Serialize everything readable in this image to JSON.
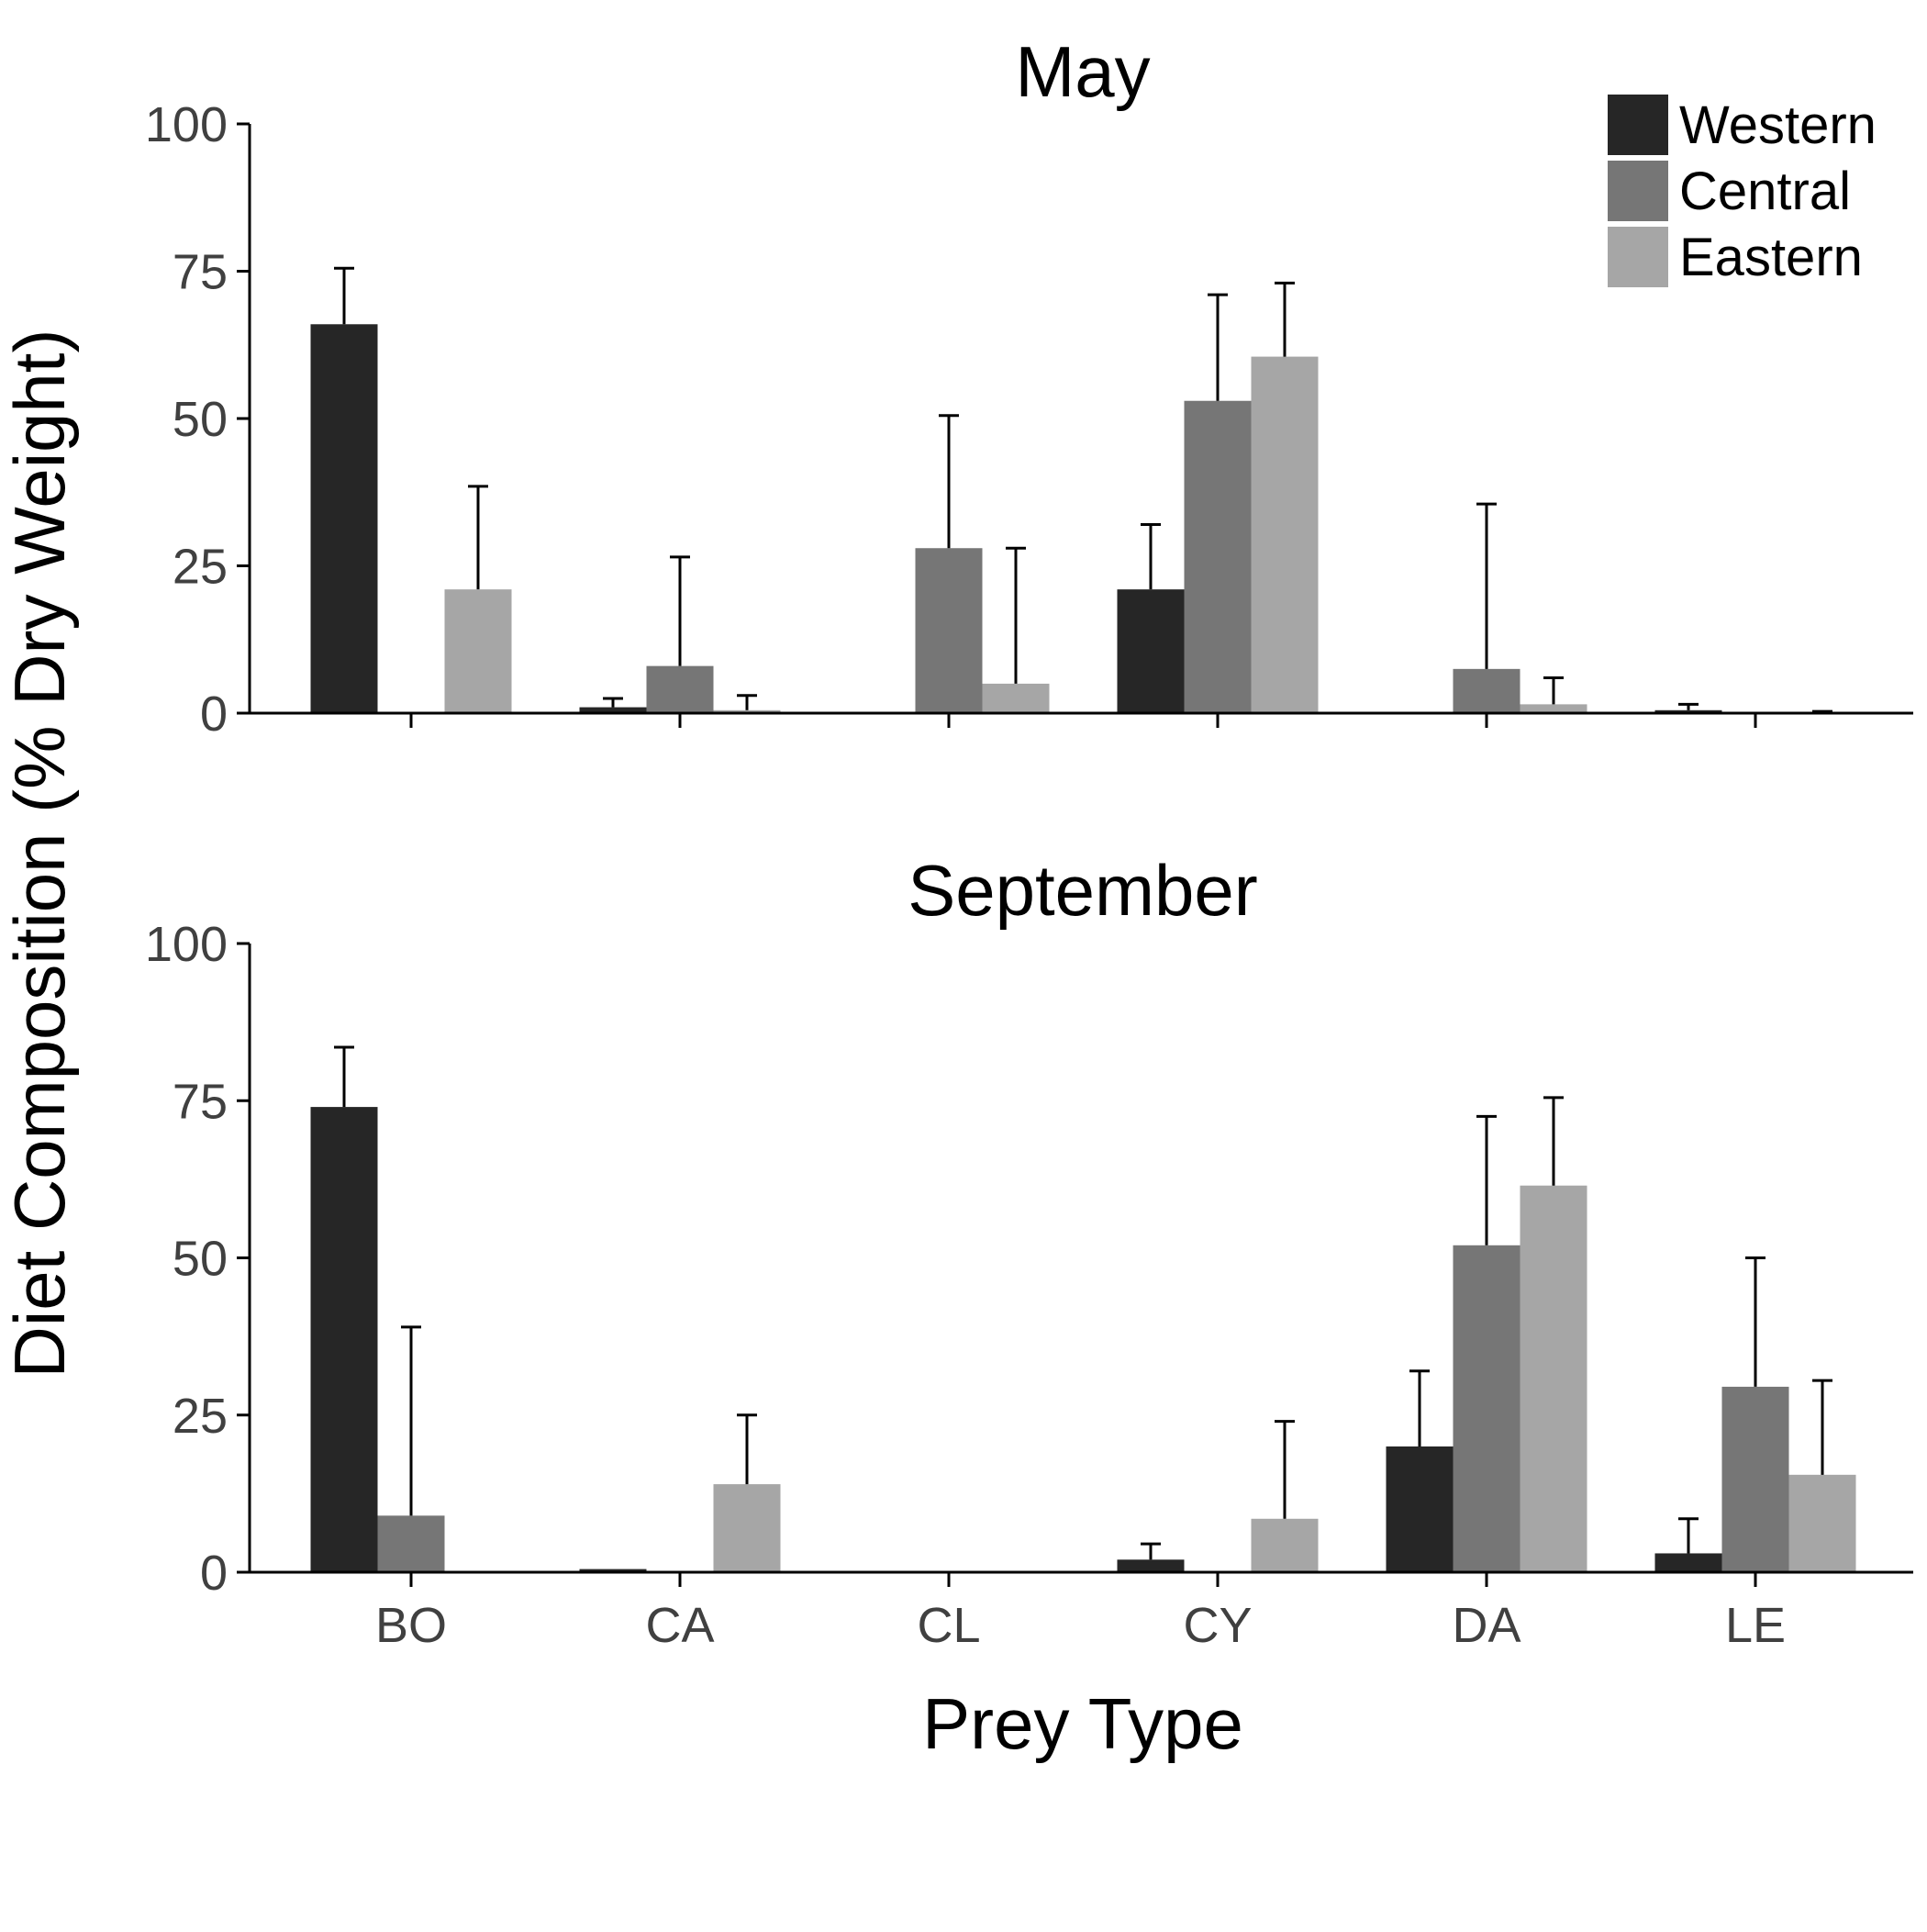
{
  "chart_data": [
    {
      "type": "bar",
      "title": "May",
      "categories": [
        "BO",
        "CA",
        "CL",
        "CY",
        "DA",
        "LE"
      ],
      "ylim": [
        0,
        100
      ],
      "yticks": [
        "0",
        "25",
        "50",
        "75",
        "100"
      ],
      "series": [
        {
          "name": "Western",
          "color": "#262626",
          "values": [
            66,
            1,
            0,
            21,
            0,
            0.5
          ],
          "error_upper": [
            75.5,
            2.5,
            null,
            32,
            null,
            1.5
          ]
        },
        {
          "name": "Central",
          "color": "#767676",
          "values": [
            0,
            8,
            28,
            53,
            7.5,
            0
          ],
          "error_upper": [
            null,
            26.5,
            50.5,
            71,
            35.5,
            null
          ]
        },
        {
          "name": "Eastern",
          "color": "#a6a6a6",
          "values": [
            21,
            0.5,
            5,
            60.5,
            1.5,
            0.2
          ],
          "error_upper": [
            38.5,
            3,
            28,
            73,
            6,
            0.3
          ]
        }
      ]
    },
    {
      "type": "bar",
      "title": "September",
      "categories": [
        "BO",
        "CA",
        "CL",
        "CY",
        "DA",
        "LE"
      ],
      "ylim": [
        0,
        100
      ],
      "yticks": [
        "0",
        "25",
        "50",
        "75",
        "100"
      ],
      "series": [
        {
          "name": "Western",
          "color": "#262626",
          "values": [
            74,
            0.5,
            0,
            2,
            20,
            3
          ],
          "error_upper": [
            83.5,
            null,
            null,
            4.5,
            32,
            8.5
          ]
        },
        {
          "name": "Central",
          "color": "#767676",
          "values": [
            9,
            0,
            0,
            0,
            52,
            29.5
          ],
          "error_upper": [
            39,
            null,
            null,
            null,
            72.5,
            50
          ]
        },
        {
          "name": "Eastern",
          "color": "#a6a6a6",
          "values": [
            0,
            14,
            0,
            8.5,
            61.5,
            15.5
          ],
          "error_upper": [
            null,
            25,
            null,
            24,
            75.5,
            30.5
          ]
        }
      ]
    }
  ],
  "axes": {
    "xlabel": "Prey Type",
    "ylabel": "Diet Composition (% Dry Weight)"
  },
  "legend": {
    "placement": "top-right",
    "items": [
      "Western",
      "Central",
      "Eastern"
    ]
  }
}
